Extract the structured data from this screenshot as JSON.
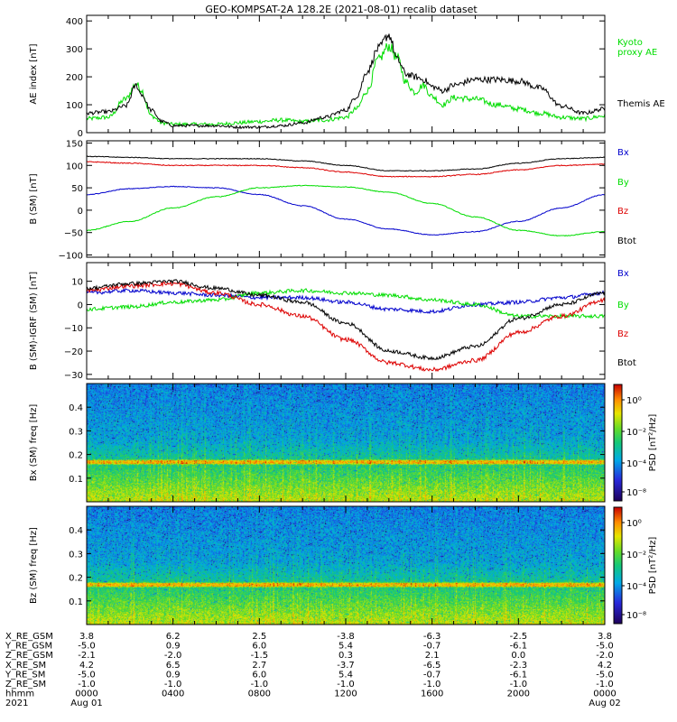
{
  "title": "GEO-KOMPSAT-2A 128.2E (2021-08-01) recalib dataset",
  "colors": {
    "black": "#000000",
    "green": "#00dd00",
    "blue": "#0000cc",
    "red": "#dd0000"
  },
  "chart_data": [
    {
      "type": "line",
      "ylabel": "AE index [nT]",
      "ylim": [
        0,
        420
      ],
      "yticks": [
        0,
        100,
        200,
        300,
        400
      ],
      "x_unit": "hour of day (UT)",
      "xlim": [
        0,
        24
      ],
      "series": [
        {
          "name": "Kyoto proxy AE",
          "color": "green",
          "x": [
            0,
            1,
            1.8,
            2.3,
            2.5,
            3,
            3.5,
            4,
            5,
            6,
            7,
            8,
            9,
            10,
            11,
            12,
            12.5,
            13,
            13.5,
            14,
            14.4,
            14.8,
            15.2,
            15.6,
            16,
            16.5,
            17,
            18,
            19,
            20,
            21,
            22,
            23,
            24
          ],
          "values": [
            50,
            55,
            120,
            175,
            155,
            60,
            35,
            30,
            30,
            30,
            35,
            40,
            45,
            40,
            45,
            55,
            85,
            150,
            260,
            310,
            265,
            180,
            145,
            170,
            130,
            100,
            125,
            120,
            100,
            85,
            70,
            55,
            50,
            60
          ]
        },
        {
          "name": "Themis AE",
          "color": "black",
          "x": [
            0,
            1,
            1.8,
            2.3,
            2.5,
            3,
            3.5,
            4,
            5,
            6,
            7,
            8,
            9,
            10,
            11,
            12,
            12.5,
            13,
            13.5,
            14,
            14.4,
            14.8,
            15.2,
            15.6,
            16,
            16.5,
            17,
            18,
            19,
            20,
            21,
            22,
            23,
            24
          ],
          "values": [
            70,
            75,
            95,
            170,
            140,
            80,
            40,
            25,
            25,
            25,
            20,
            20,
            25,
            35,
            55,
            80,
            130,
            220,
            300,
            350,
            260,
            210,
            200,
            190,
            165,
            150,
            170,
            190,
            190,
            185,
            160,
            95,
            70,
            85
          ]
        }
      ],
      "legend": [
        "Kyoto proxy AE",
        "Themis AE"
      ]
    },
    {
      "type": "line",
      "ylabel": "B (SM) [nT]",
      "ylim": [
        -105,
        155
      ],
      "yticks": [
        -100,
        -50,
        0,
        50,
        100,
        150
      ],
      "xlim": [
        0,
        24
      ],
      "series": [
        {
          "name": "Bx",
          "color": "blue",
          "x": [
            0,
            2,
            4,
            6,
            8,
            10,
            12,
            14,
            16,
            18,
            20,
            22,
            24
          ],
          "values": [
            35,
            48,
            53,
            50,
            35,
            10,
            -20,
            -42,
            -55,
            -48,
            -25,
            5,
            35
          ]
        },
        {
          "name": "By",
          "color": "green",
          "x": [
            0,
            2,
            4,
            6,
            8,
            10,
            12,
            14,
            16,
            18,
            20,
            22,
            24
          ],
          "values": [
            -45,
            -25,
            5,
            30,
            50,
            55,
            52,
            40,
            15,
            -15,
            -45,
            -57,
            -48
          ]
        },
        {
          "name": "Bz",
          "color": "red",
          "x": [
            0,
            2,
            4,
            6,
            8,
            10,
            12,
            14,
            16,
            18,
            20,
            22,
            24
          ],
          "values": [
            108,
            105,
            100,
            100,
            100,
            95,
            85,
            75,
            75,
            80,
            90,
            100,
            103
          ]
        },
        {
          "name": "Btot",
          "color": "black",
          "x": [
            0,
            2,
            4,
            6,
            8,
            10,
            12,
            14,
            16,
            18,
            20,
            22,
            24
          ],
          "values": [
            120,
            118,
            115,
            115,
            115,
            110,
            100,
            88,
            88,
            92,
            105,
            115,
            118
          ]
        }
      ],
      "legend": [
        "Bx",
        "By",
        "Bz",
        "Btot"
      ]
    },
    {
      "type": "line",
      "ylabel": "B (SM)-IGRF (SM) [nT]",
      "ylim": [
        -32,
        18
      ],
      "yticks": [
        -30,
        -20,
        -10,
        0,
        10
      ],
      "xlim": [
        0,
        24
      ],
      "series": [
        {
          "name": "Bx",
          "color": "blue",
          "x": [
            0,
            2,
            4,
            6,
            8,
            10,
            12,
            14,
            16,
            18,
            20,
            22,
            24
          ],
          "values": [
            5,
            6,
            5,
            4,
            3,
            3,
            1,
            -2,
            -3,
            0,
            1,
            3,
            5
          ]
        },
        {
          "name": "By",
          "color": "green",
          "x": [
            0,
            2,
            4,
            6,
            8,
            10,
            12,
            14,
            16,
            18,
            20,
            22,
            24
          ],
          "values": [
            -2,
            -1,
            1,
            2,
            5,
            6,
            5,
            4,
            2,
            0,
            -5,
            -5,
            -5
          ]
        },
        {
          "name": "Bz",
          "color": "red",
          "x": [
            0,
            2,
            4,
            6,
            8,
            10,
            12,
            14,
            16,
            18,
            20,
            22,
            24
          ],
          "values": [
            6,
            8,
            9,
            5,
            0,
            -5,
            -15,
            -25,
            -28,
            -24,
            -12,
            -5,
            2
          ]
        },
        {
          "name": "Btot",
          "color": "black",
          "x": [
            0,
            2,
            4,
            6,
            8,
            10,
            12,
            14,
            16,
            18,
            20,
            22,
            24
          ],
          "values": [
            7,
            9,
            10,
            7,
            4,
            1,
            -8,
            -20,
            -23,
            -18,
            -6,
            0,
            5
          ]
        }
      ],
      "legend": [
        "Bx",
        "By",
        "Bz",
        "Btot"
      ]
    },
    {
      "type": "heatmap",
      "ylabel": "Bx (SM) freq [Hz]",
      "ylim": [
        0,
        0.5
      ],
      "yticks": [
        0.1,
        0.2,
        0.3,
        0.4
      ],
      "colorbar_label": "PSD [nT²/Hz]",
      "colorbar_ticks": [
        "10⁰",
        "10⁻²",
        "10⁻⁴",
        "10⁻⁸"
      ],
      "features": {
        "line_freq_hz": 0.17
      }
    },
    {
      "type": "heatmap",
      "ylabel": "Bz (SM) freq [Hz]",
      "ylim": [
        0,
        0.5
      ],
      "yticks": [
        0.1,
        0.2,
        0.3,
        0.4
      ],
      "colorbar_label": "PSD [nT²/Hz]",
      "colorbar_ticks": [
        "10⁰",
        "10⁻²",
        "10⁻⁴",
        "10⁻⁸"
      ],
      "features": {
        "line_freq_hz": 0.17
      }
    }
  ],
  "ephemeris": {
    "labels": [
      "X_RE_GSM",
      "Y_RE_GSM",
      "Z_RE_GSM",
      "X_RE_SM",
      "Y_RE_SM",
      "Z_RE_SM",
      "hhmm",
      "2021"
    ],
    "columns": [
      [
        "3.8",
        "-5.0",
        "-2.1",
        "4.2",
        "-5.0",
        "-1.0",
        "0000",
        "Aug 01"
      ],
      [
        "6.2",
        "0.9",
        "-2.0",
        "6.5",
        "0.9",
        "-1.0",
        "0400",
        ""
      ],
      [
        "2.5",
        "6.0",
        "-1.5",
        "2.7",
        "6.0",
        "-1.0",
        "0800",
        ""
      ],
      [
        "-3.8",
        "5.4",
        "0.3",
        "-3.7",
        "5.4",
        "-1.0",
        "1200",
        ""
      ],
      [
        "-6.3",
        "-0.7",
        "2.1",
        "-6.5",
        "-0.7",
        "-1.0",
        "1600",
        ""
      ],
      [
        "-2.5",
        "-6.1",
        "0.0",
        "-2.3",
        "-6.1",
        "-1.0",
        "2000",
        ""
      ],
      [
        "3.8",
        "-5.0",
        "-2.0",
        "4.2",
        "-5.0",
        "-1.0",
        "0000",
        "Aug 02"
      ]
    ]
  }
}
